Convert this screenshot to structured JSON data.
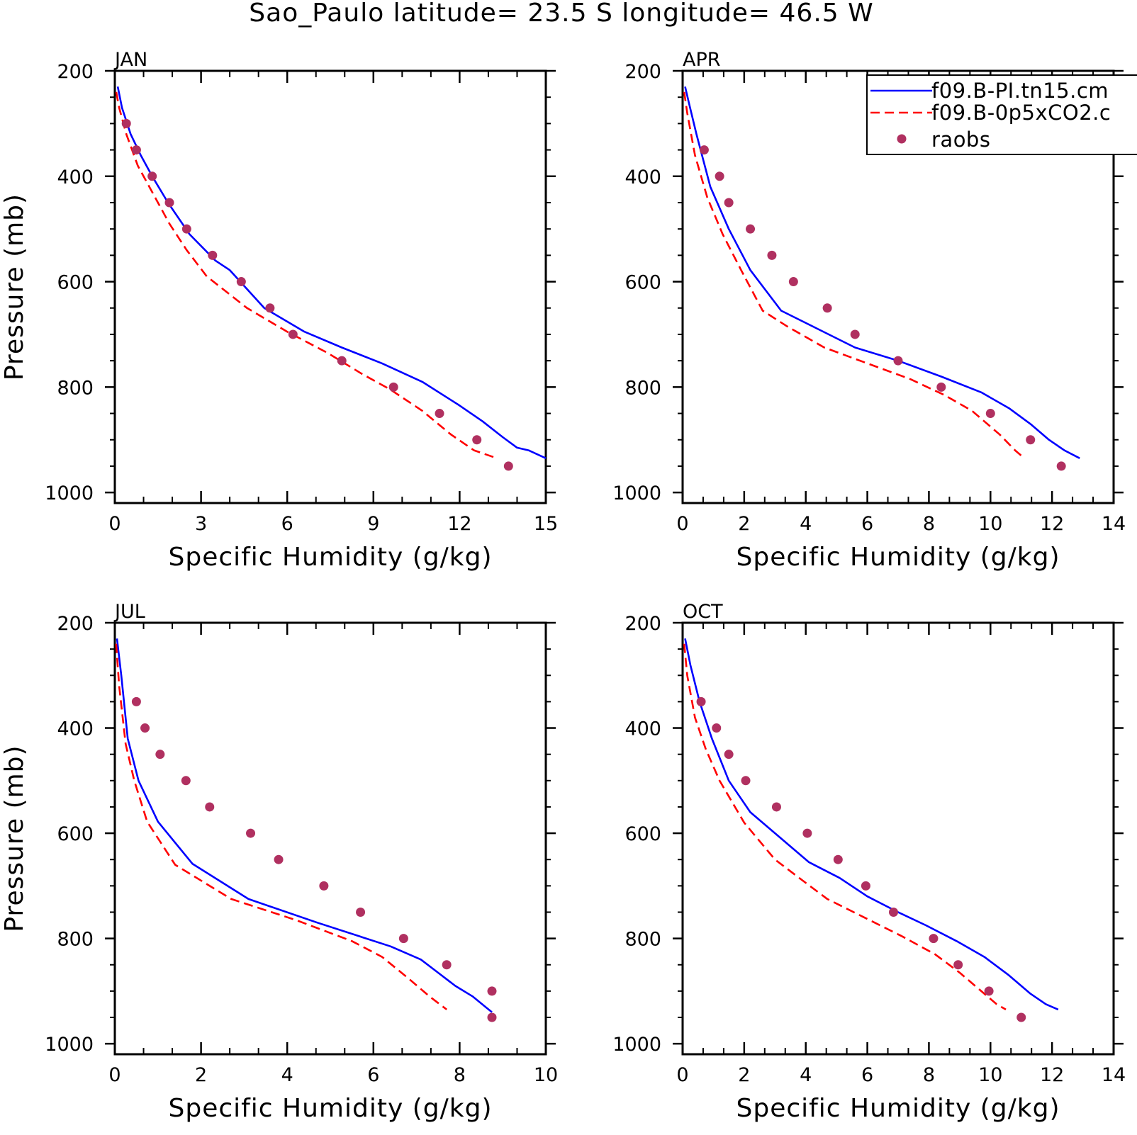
{
  "title": "Sao_Paulo  latitude= 23.5 S longitude= 46.5 W",
  "legend": [
    {
      "label": "f09.B-PI.tn15.cm",
      "color": "#0000ff",
      "style": "solid"
    },
    {
      "label": "f09.B-0p5xCO2.c",
      "color": "#ff0000",
      "style": "dashed"
    },
    {
      "label": "raobs",
      "color": "#b03060",
      "style": "dots"
    }
  ],
  "chart_data": [
    {
      "type": "line",
      "panel": "JAN",
      "title": "JAN",
      "xlabel": "Specific Humidity (g/kg)",
      "ylabel": "Pressure (mb)",
      "xlim": [
        0,
        15
      ],
      "ylim": [
        1020,
        200
      ],
      "xticks": [
        "0",
        "3",
        "6",
        "9",
        "12",
        "15"
      ],
      "yticks": [
        "200",
        "400",
        "600",
        "800",
        "1000"
      ],
      "series": [
        {
          "name": "f09.B-PI.tn15.cm",
          "x": [
            0.1,
            0.25,
            0.55,
            0.9,
            1.3,
            1.85,
            2.6,
            3.5,
            4.0,
            5.2,
            6.6,
            7.9,
            9.3,
            10.7,
            12.0,
            12.8,
            13.5,
            14.0,
            14.4,
            15.0
          ],
          "y": [
            230,
            270,
            320,
            360,
            400,
            450,
            510,
            560,
            578,
            650,
            695,
            725,
            755,
            790,
            835,
            865,
            895,
            915,
            920,
            935
          ]
        },
        {
          "name": "f09.B-0p5xCO2.c",
          "x": [
            0.05,
            0.15,
            0.4,
            0.8,
            1.3,
            1.9,
            2.5,
            3.2,
            4.6,
            6.0,
            7.4,
            8.6,
            9.6,
            10.7,
            11.7,
            12.5,
            13.3
          ],
          "y": [
            240,
            270,
            320,
            380,
            430,
            490,
            540,
            590,
            650,
            695,
            735,
            775,
            805,
            845,
            890,
            920,
            935
          ]
        },
        {
          "name": "raobs",
          "x": [
            0.4,
            0.75,
            1.3,
            1.9,
            2.5,
            3.4,
            4.4,
            5.4,
            6.2,
            7.9,
            9.7,
            11.3,
            12.6,
            13.7
          ],
          "y": [
            300,
            350,
            400,
            450,
            500,
            550,
            600,
            650,
            700,
            750,
            800,
            850,
            900,
            950
          ]
        }
      ]
    },
    {
      "type": "line",
      "panel": "APR",
      "title": "APR",
      "xlabel": "Specific Humidity (g/kg)",
      "ylabel": "",
      "xlim": [
        0,
        14
      ],
      "ylim": [
        1020,
        200
      ],
      "xticks": [
        "0",
        "2",
        "4",
        "6",
        "8",
        "10",
        "12",
        "14"
      ],
      "yticks": [
        "200",
        "400",
        "600",
        "800",
        "1000"
      ],
      "series": [
        {
          "name": "f09.B-PI.tn15.cm",
          "x": [
            0.08,
            0.2,
            0.45,
            0.9,
            1.5,
            2.2,
            3.2,
            4.4,
            5.6,
            7.0,
            8.4,
            9.7,
            10.6,
            11.3,
            11.9,
            12.4,
            12.9
          ],
          "y": [
            230,
            260,
            320,
            420,
            500,
            578,
            655,
            690,
            725,
            750,
            780,
            810,
            840,
            870,
            900,
            920,
            935
          ]
        },
        {
          "name": "f09.B-0p5xCO2.c",
          "x": [
            0.05,
            0.15,
            0.4,
            0.8,
            1.3,
            1.9,
            2.6,
            3.4,
            4.6,
            6.0,
            7.4,
            8.5,
            9.4,
            10.3,
            10.8,
            11.1
          ],
          "y": [
            240,
            280,
            360,
            440,
            510,
            578,
            655,
            685,
            725,
            755,
            785,
            815,
            845,
            890,
            920,
            935
          ]
        },
        {
          "name": "raobs",
          "x": [
            0.7,
            1.2,
            1.5,
            2.2,
            2.9,
            3.6,
            4.7,
            5.6,
            7.0,
            8.4,
            10.0,
            11.3,
            12.3
          ],
          "y": [
            350,
            400,
            450,
            500,
            550,
            600,
            650,
            700,
            750,
            800,
            850,
            900,
            950
          ]
        }
      ]
    },
    {
      "type": "line",
      "panel": "JUL",
      "title": "JUL",
      "xlabel": "Specific Humidity (g/kg)",
      "ylabel": "Pressure (mb)",
      "xlim": [
        0,
        10
      ],
      "ylim": [
        1020,
        200
      ],
      "xticks": [
        "0",
        "2",
        "4",
        "6",
        "8",
        "10"
      ],
      "yticks": [
        "200",
        "400",
        "600",
        "800",
        "1000"
      ],
      "series": [
        {
          "name": "f09.B-PI.tn15.cm",
          "x": [
            0.05,
            0.15,
            0.3,
            0.55,
            1.0,
            1.8,
            3.1,
            4.7,
            6.4,
            7.1,
            7.5,
            7.9,
            8.3,
            8.6,
            8.75
          ],
          "y": [
            230,
            300,
            420,
            500,
            578,
            658,
            725,
            770,
            815,
            840,
            865,
            890,
            910,
            930,
            940
          ]
        },
        {
          "name": "f09.B-0p5xCO2.c",
          "x": [
            0.03,
            0.1,
            0.25,
            0.45,
            0.75,
            1.4,
            2.7,
            4.2,
            5.5,
            6.2,
            6.8,
            7.3,
            7.7
          ],
          "y": [
            240,
            320,
            430,
            500,
            578,
            660,
            725,
            765,
            805,
            835,
            875,
            910,
            935
          ]
        },
        {
          "name": "raobs",
          "x": [
            0.5,
            0.7,
            1.05,
            1.65,
            2.2,
            3.15,
            3.8,
            4.85,
            5.7,
            6.7,
            7.7,
            8.75,
            8.75
          ],
          "y": [
            350,
            400,
            450,
            500,
            550,
            600,
            650,
            700,
            750,
            800,
            850,
            900,
            950
          ]
        }
      ]
    },
    {
      "type": "line",
      "panel": "OCT",
      "title": "OCT",
      "xlabel": "Specific Humidity (g/kg)",
      "ylabel": "",
      "xlim": [
        0,
        14
      ],
      "ylim": [
        1020,
        200
      ],
      "xticks": [
        "0",
        "2",
        "4",
        "6",
        "8",
        "10",
        "12",
        "14"
      ],
      "yticks": [
        "200",
        "400",
        "600",
        "800",
        "1000"
      ],
      "series": [
        {
          "name": "f09.B-PI.tn15.cm",
          "x": [
            0.08,
            0.25,
            0.55,
            0.95,
            1.5,
            2.2,
            3.1,
            4.1,
            5.1,
            6.0,
            7.0,
            7.9,
            8.9,
            9.8,
            10.6,
            11.3,
            11.8,
            12.2
          ],
          "y": [
            230,
            280,
            350,
            420,
            500,
            560,
            605,
            655,
            685,
            720,
            750,
            775,
            805,
            835,
            870,
            905,
            925,
            935
          ]
        },
        {
          "name": "f09.B-0p5xCO2.c",
          "x": [
            0.05,
            0.15,
            0.4,
            0.75,
            1.2,
            2.0,
            3.0,
            3.9,
            4.7,
            5.9,
            7.1,
            8.2,
            9.0,
            9.7,
            10.2,
            10.5
          ],
          "y": [
            240,
            300,
            380,
            440,
            500,
            580,
            650,
            690,
            725,
            760,
            795,
            830,
            865,
            900,
            925,
            935
          ]
        },
        {
          "name": "raobs",
          "x": [
            0.6,
            1.1,
            1.5,
            2.05,
            3.05,
            4.05,
            5.05,
            5.95,
            6.85,
            8.15,
            8.95,
            9.95,
            11.0
          ],
          "y": [
            350,
            400,
            450,
            500,
            550,
            600,
            650,
            700,
            750,
            800,
            850,
            900,
            950
          ]
        }
      ]
    }
  ]
}
